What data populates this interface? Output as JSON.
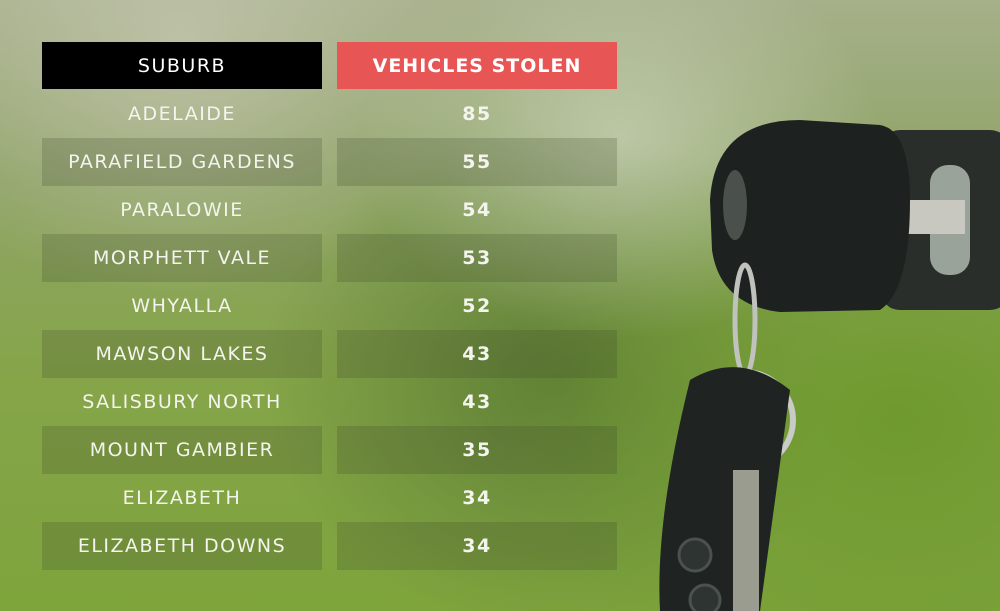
{
  "chart_data": {
    "type": "table",
    "columns": [
      "SUBURB",
      "VEHICLES STOLEN"
    ],
    "rows": [
      {
        "suburb": "ADELAIDE",
        "value": "85"
      },
      {
        "suburb": "PARAFIELD GARDENS",
        "value": "55"
      },
      {
        "suburb": "PARALOWIE",
        "value": "54"
      },
      {
        "suburb": "MORPHETT VALE",
        "value": "53"
      },
      {
        "suburb": "WHYALLA",
        "value": "52"
      },
      {
        "suburb": "MAWSON LAKES",
        "value": "43"
      },
      {
        "suburb": "SALISBURY NORTH",
        "value": "43"
      },
      {
        "suburb": "MOUNT GAMBIER",
        "value": "35"
      },
      {
        "suburb": "ELIZABETH",
        "value": "34"
      },
      {
        "suburb": "ELIZABETH DOWNS",
        "value": "34"
      }
    ]
  },
  "colors": {
    "header_left": "#000000",
    "header_right": "#e85555",
    "background": "#86a54a"
  }
}
